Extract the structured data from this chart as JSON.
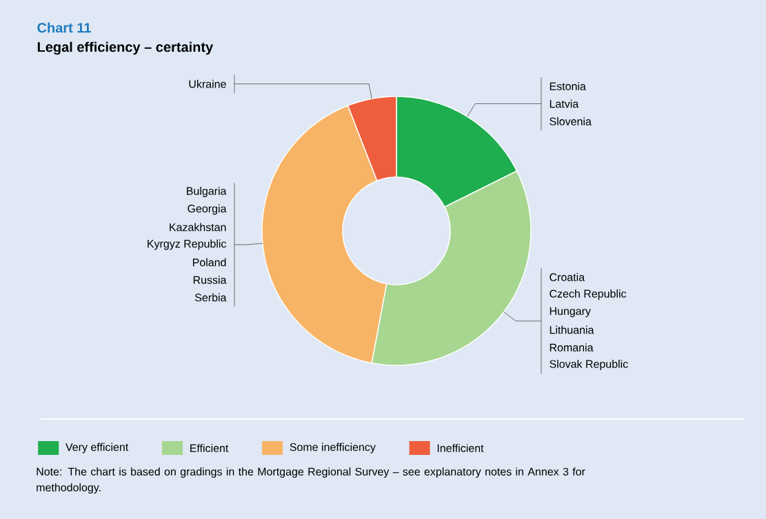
{
  "chart_data": {
    "type": "donut",
    "title": "Chart 11",
    "subtitle": "Legal efficiency – certainty",
    "categories": [
      "Very efficient",
      "Efficient",
      "Some inefficiency",
      "Inefficient"
    ],
    "values": [
      17.65,
      35.29,
      41.18,
      5.88
    ],
    "colors": [
      "#1fae4f",
      "#a7d690",
      "#f8b466",
      "#ee5e3c"
    ],
    "legend": "bottom",
    "annotations": [
      {
        "text": "Estonia",
        "x": "Very efficient"
      },
      {
        "text": "Latvia",
        "x": "Very efficient"
      },
      {
        "text": "Slovenia",
        "x": "Very efficient"
      },
      {
        "text": "Croatia",
        "x": "Efficient"
      },
      {
        "text": "Czech Republic",
        "x": "Efficient"
      },
      {
        "text": "Hungary",
        "x": "Efficient"
      },
      {
        "text": "Lithuania",
        "x": "Efficient"
      },
      {
        "text": "Romania",
        "x": "Efficient"
      },
      {
        "text": "Slovak Republic",
        "x": "Efficient"
      },
      {
        "text": "Bulgaria",
        "x": "Some inefficiency"
      },
      {
        "text": "Georgia",
        "x": "Some inefficiency"
      },
      {
        "text": "Kazakhstan",
        "x": "Some inefficiency"
      },
      {
        "text": "Kyrgyz Republic",
        "x": "Some inefficiency"
      },
      {
        "text": "Poland",
        "x": "Some inefficiency"
      },
      {
        "text": "Russia",
        "x": "Some inefficiency"
      },
      {
        "text": "Serbia",
        "x": "Some inefficiency"
      },
      {
        "text": "Ukraine",
        "x": "Inefficient"
      },
      "Note: The chart is based on gradings in the Mortgage Regional Survey – see explanatory notes in Annex 3 for methodology."
    ]
  }
}
